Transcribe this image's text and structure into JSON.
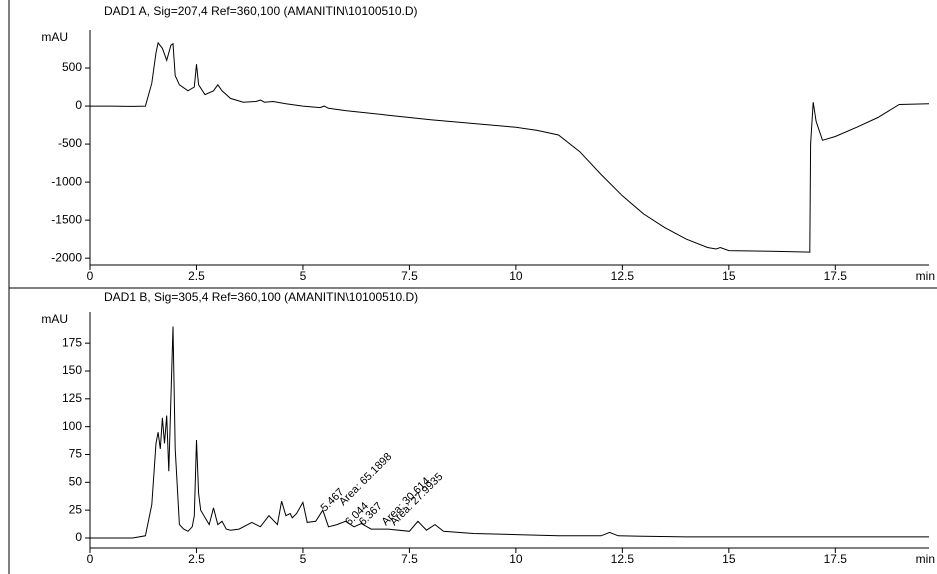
{
  "chart_data": [
    {
      "type": "line",
      "title": "DAD1 A, Sig=207,4 Ref=360,100 (AMANITIN\\10100510.D)",
      "y_label": "mAU",
      "x_label": "min",
      "color": "#000000",
      "xlim": [
        0,
        19.7
      ],
      "xticks": [
        0,
        2.5,
        5,
        7.5,
        10,
        12.5,
        15,
        17.5
      ],
      "ylim": [
        -2090,
        1000
      ],
      "yticks": [
        500,
        0,
        -500,
        -1000,
        -1500,
        -2000
      ],
      "x": [
        0,
        0.5,
        1,
        1.3,
        1.45,
        1.55,
        1.6,
        1.7,
        1.8,
        1.9,
        1.95,
        2.0,
        2.1,
        2.3,
        2.45,
        2.5,
        2.55,
        2.7,
        2.9,
        3.0,
        3.1,
        3.3,
        3.6,
        3.9,
        4.0,
        4.1,
        4.3,
        4.6,
        5,
        5.4,
        5.5,
        5.6,
        6,
        7,
        8,
        9,
        10,
        10.5,
        11,
        11.5,
        12,
        12.5,
        13,
        13.5,
        14,
        14.5,
        14.7,
        14.8,
        15,
        16,
        16.9,
        16.92,
        16.98,
        17.05,
        17.2,
        17.5,
        18,
        18.5,
        19,
        19.7
      ],
      "values": [
        0,
        0,
        -5,
        0,
        300,
        700,
        830,
        760,
        600,
        800,
        820,
        400,
        280,
        200,
        250,
        550,
        280,
        150,
        200,
        280,
        200,
        100,
        50,
        60,
        80,
        50,
        60,
        30,
        0,
        -20,
        0,
        -30,
        -60,
        -120,
        -180,
        -230,
        -280,
        -320,
        -380,
        -600,
        -900,
        -1180,
        -1420,
        -1600,
        -1750,
        -1860,
        -1880,
        -1860,
        -1900,
        -1910,
        -1920,
        -500,
        50,
        -200,
        -450,
        -400,
        -280,
        -150,
        20,
        30
      ]
    },
    {
      "type": "line",
      "title": "DAD1 B, Sig=305,4 Ref=360,100 (AMANITIN\\10100510.D)",
      "y_label": "mAU",
      "x_label": "min",
      "color": "#000000",
      "xlim": [
        0,
        19.7
      ],
      "xticks": [
        0,
        2.5,
        5,
        7.5,
        10,
        12.5,
        15,
        17.5
      ],
      "ylim": [
        -9,
        203
      ],
      "yticks": [
        0,
        25,
        50,
        75,
        100,
        125,
        150,
        175
      ],
      "x": [
        0,
        0.5,
        1,
        1.3,
        1.45,
        1.55,
        1.6,
        1.65,
        1.7,
        1.75,
        1.8,
        1.85,
        1.95,
        2.0,
        2.1,
        2.2,
        2.3,
        2.4,
        2.45,
        2.5,
        2.55,
        2.6,
        2.8,
        2.9,
        3.0,
        3.1,
        3.2,
        3.3,
        3.5,
        3.8,
        4.0,
        4.2,
        4.4,
        4.5,
        4.6,
        4.7,
        4.75,
        4.85,
        5.0,
        5.1,
        5.3,
        5.467,
        5.6,
        5.8,
        6.0,
        6.2,
        6.367,
        6.6,
        7,
        7.5,
        7.7,
        7.9,
        8.1,
        8.3,
        9,
        10,
        11,
        12,
        12.2,
        12.4,
        14,
        16,
        18,
        19.7
      ],
      "values": [
        0,
        0,
        0,
        2,
        30,
        85,
        95,
        80,
        108,
        85,
        110,
        60,
        190,
        80,
        12,
        8,
        6,
        10,
        20,
        88,
        40,
        25,
        12,
        27,
        12,
        15,
        8,
        7,
        8,
        14,
        10,
        20,
        12,
        33,
        20,
        22,
        18,
        22,
        32,
        14,
        15,
        25,
        10,
        12,
        15,
        10,
        13,
        8,
        8,
        6,
        15,
        7,
        12,
        6,
        4,
        3,
        2,
        2,
        5,
        2,
        1,
        1,
        1,
        1
      ],
      "annotations": [
        "5.467",
        "Area: 65.1898",
        "6.044",
        "6.367",
        "Area: 30.614",
        "Area: 27.9935"
      ]
    }
  ]
}
